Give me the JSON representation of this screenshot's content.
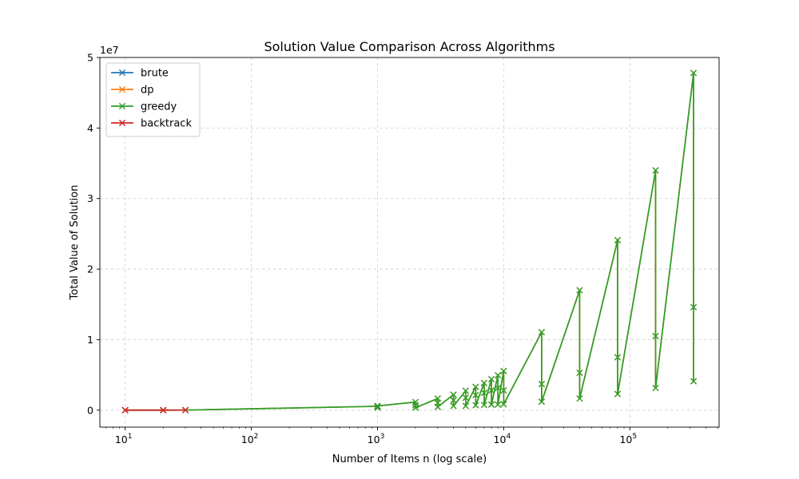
{
  "chart_data": {
    "type": "line",
    "title": "Solution Value Comparison Across Algorithms",
    "xlabel": "Number of Items n (log scale)",
    "ylabel": "Total Value of Solution",
    "x_scale": "log",
    "y_offset_label": "1e7",
    "xlim": [
      6.3,
      510000
    ],
    "ylim": [
      -2400000,
      50000000
    ],
    "x_ticks": [
      {
        "value": 10,
        "base": "10",
        "exp": "1"
      },
      {
        "value": 100,
        "base": "10",
        "exp": "2"
      },
      {
        "value": 1000,
        "base": "10",
        "exp": "3"
      },
      {
        "value": 10000,
        "base": "10",
        "exp": "4"
      },
      {
        "value": 100000,
        "base": "10",
        "exp": "5"
      }
    ],
    "y_ticks": [
      {
        "value": 0,
        "label": "0"
      },
      {
        "value": 10000000,
        "label": "1"
      },
      {
        "value": 20000000,
        "label": "2"
      },
      {
        "value": 30000000,
        "label": "3"
      },
      {
        "value": 40000000,
        "label": "4"
      },
      {
        "value": 50000000,
        "label": "5"
      }
    ],
    "grid": true,
    "legend_position": "top-left",
    "marker": "x",
    "series": [
      {
        "name": "brute",
        "color": "#1f77b4",
        "x": [
          10,
          20,
          30
        ],
        "y": [
          3000,
          6000,
          9000
        ]
      },
      {
        "name": "dp",
        "color": "#ff7f0e",
        "x": [
          10,
          20,
          30,
          1000,
          1000,
          1000,
          2000,
          2000,
          2000,
          3000,
          3000,
          3000,
          4000,
          4000,
          4000,
          5000,
          5000,
          5000,
          6000,
          6000,
          6000,
          7000,
          7000,
          7000,
          8000,
          8000,
          8000,
          9000,
          9000,
          9000,
          10000,
          10000,
          10000,
          20000,
          20000,
          20000,
          40000,
          40000,
          40000,
          80000,
          80000,
          80000,
          160000,
          160000,
          160000,
          320000,
          320000,
          320000
        ],
        "y": [
          3000,
          6000,
          9000,
          550000,
          350000,
          600000,
          1150000,
          700000,
          350000,
          1650000,
          1050000,
          450000,
          2200000,
          1400000,
          600000,
          2750000,
          1750000,
          600000,
          3300000,
          2150000,
          700000,
          3850000,
          2450000,
          750000,
          4400000,
          2800000,
          800000,
          4950000,
          3150000,
          800000,
          5550000,
          2800000,
          850000,
          11050000,
          3700000,
          1200000,
          17000000,
          5300000,
          1650000,
          24100000,
          7500000,
          2300000,
          34000000,
          10500000,
          3150000,
          47800000,
          14600000,
          4100000
        ]
      },
      {
        "name": "greedy",
        "color": "#2ca02c",
        "x": [
          10,
          20,
          30,
          1000,
          1000,
          1000,
          2000,
          2000,
          2000,
          3000,
          3000,
          3000,
          4000,
          4000,
          4000,
          5000,
          5000,
          5000,
          6000,
          6000,
          6000,
          7000,
          7000,
          7000,
          8000,
          8000,
          8000,
          9000,
          9000,
          9000,
          10000,
          10000,
          10000,
          20000,
          20000,
          20000,
          40000,
          40000,
          40000,
          80000,
          80000,
          80000,
          160000,
          160000,
          160000,
          320000,
          320000,
          320000
        ],
        "y": [
          3000,
          6000,
          9000,
          550000,
          350000,
          600000,
          1150000,
          700000,
          350000,
          1650000,
          1050000,
          450000,
          2200000,
          1400000,
          600000,
          2750000,
          1750000,
          600000,
          3300000,
          2150000,
          700000,
          3850000,
          2450000,
          750000,
          4400000,
          2800000,
          800000,
          4950000,
          3150000,
          800000,
          5550000,
          2800000,
          850000,
          11050000,
          3700000,
          1200000,
          17000000,
          5300000,
          1650000,
          24100000,
          7500000,
          2300000,
          34000000,
          10500000,
          3150000,
          47800000,
          14600000,
          4100000
        ]
      },
      {
        "name": "backtrack",
        "color": "#d62728",
        "x": [
          10,
          20,
          30
        ],
        "y": [
          3000,
          6000,
          9000
        ]
      }
    ]
  }
}
